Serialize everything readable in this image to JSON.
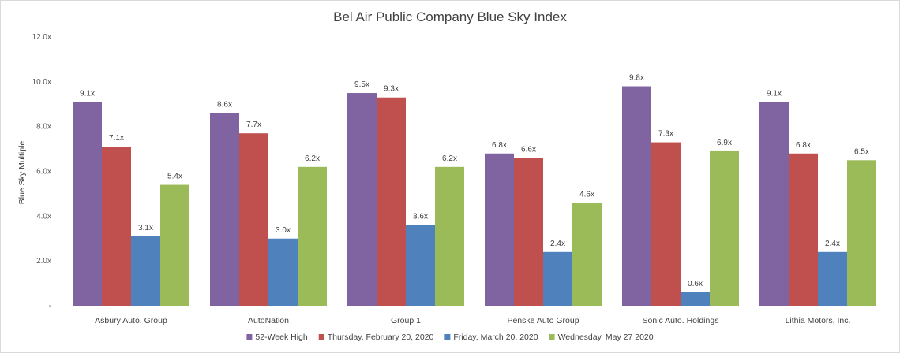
{
  "chart_data": {
    "type": "bar",
    "title": "Bel Air Public Company Blue Sky Index",
    "xlabel": "",
    "ylabel": "Blue Sky Multiple",
    "ylim": [
      0,
      12
    ],
    "yticks": [
      "-",
      "2.0x",
      "4.0x",
      "6.0x",
      "8.0x",
      "10.0x",
      "12.0x"
    ],
    "grid": false,
    "legend_position": "bottom",
    "categories": [
      "Asbury Auto. Group",
      "AutoNation",
      "Group 1",
      "Penske Auto Group",
      "Sonic Auto. Holdings",
      "Lithia Motors, Inc."
    ],
    "series": [
      {
        "name": "52-Week High",
        "color": "#8064a2",
        "values": [
          9.1,
          8.6,
          9.5,
          6.8,
          9.8,
          9.1
        ],
        "labels": [
          "9.1x",
          "8.6x",
          "9.5x",
          "6.8x",
          "9.8x",
          "9.1x"
        ]
      },
      {
        "name": "Thursday, February 20, 2020",
        "color": "#c0504d",
        "values": [
          7.1,
          7.7,
          9.3,
          6.6,
          7.3,
          6.8
        ],
        "labels": [
          "7.1x",
          "7.7x",
          "9.3x",
          "6.6x",
          "7.3x",
          "6.8x"
        ]
      },
      {
        "name": "Friday, March 20, 2020",
        "color": "#4f81bd",
        "values": [
          3.1,
          3.0,
          3.6,
          2.4,
          0.6,
          2.4
        ],
        "labels": [
          "3.1x",
          "3.0x",
          "3.6x",
          "2.4x",
          "0.6x",
          "2.4x"
        ]
      },
      {
        "name": "Wednesday, May 27 2020",
        "color": "#9bbb59",
        "values": [
          5.4,
          6.2,
          6.2,
          4.6,
          6.9,
          6.5
        ],
        "labels": [
          "5.4x",
          "6.2x",
          "6.2x",
          "4.6x",
          "6.9x",
          "6.5x"
        ]
      }
    ]
  }
}
